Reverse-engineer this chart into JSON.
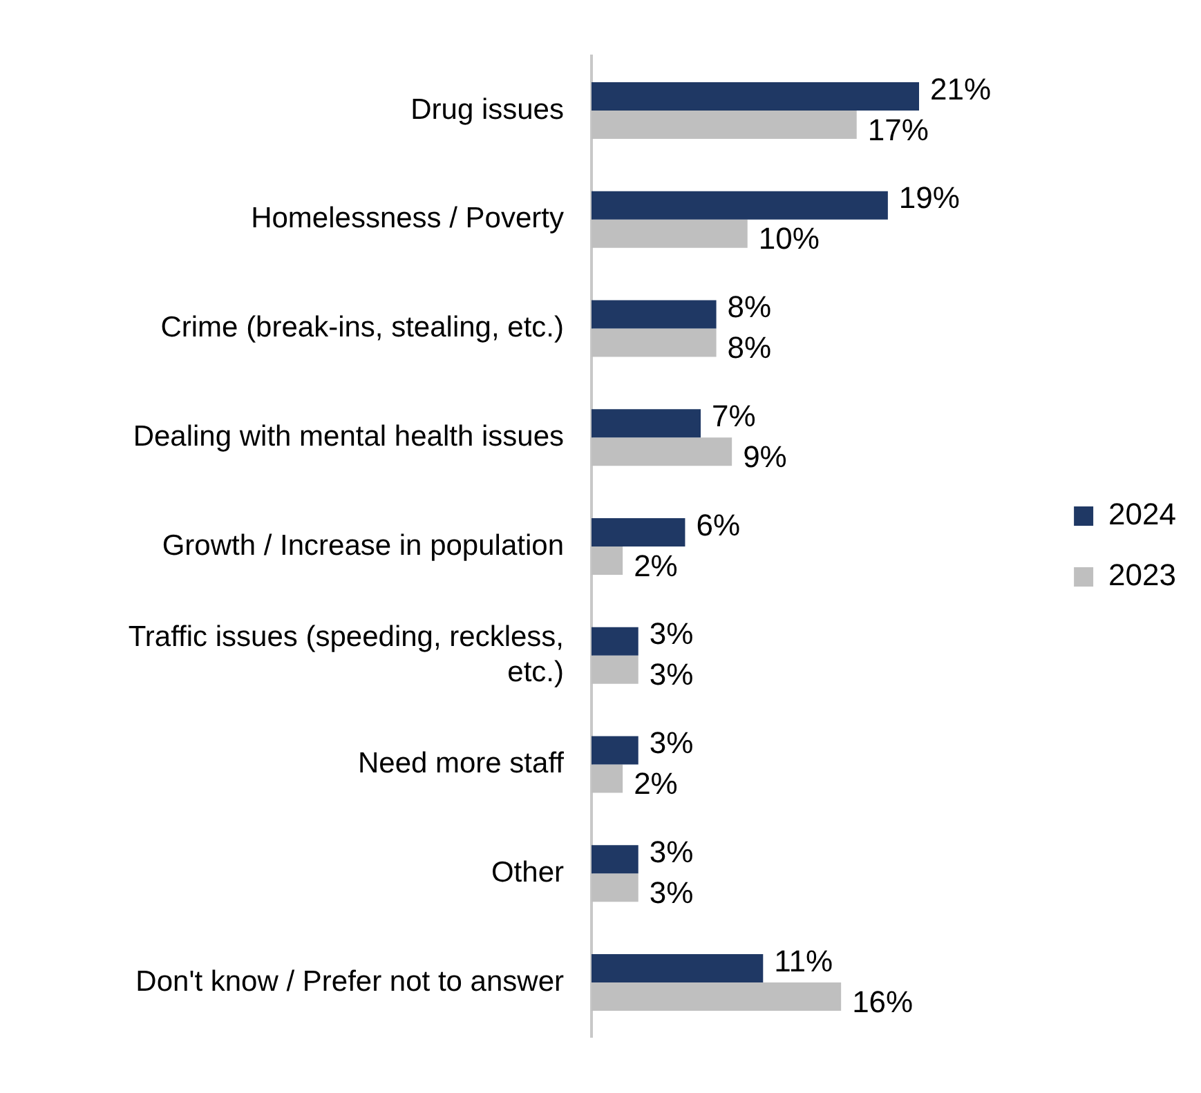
{
  "chart_data": {
    "type": "bar",
    "orientation": "horizontal",
    "legend": "right",
    "categories": [
      "Drug issues",
      "Homelessness / Poverty",
      "Crime (break-ins, stealing, etc.)",
      "Dealing with mental health issues",
      "Growth / Increase in population",
      "Traffic issues (speeding, reckless, etc.)",
      "Need more staff",
      "Other",
      "Don't know / Prefer not to answer"
    ],
    "series": [
      {
        "name": "2024",
        "color": "#1f3864",
        "values": [
          21,
          19,
          8,
          7,
          6,
          3,
          3,
          3,
          11
        ],
        "value_labels": [
          "21%",
          "19%",
          "8%",
          "7%",
          "6%",
          "3%",
          "3%",
          "3%",
          "11%"
        ]
      },
      {
        "name": "2023",
        "color": "#bfbfbf",
        "values": [
          17,
          10,
          8,
          9,
          2,
          3,
          2,
          3,
          16
        ],
        "value_labels": [
          "17%",
          "10%",
          "8%",
          "9%",
          "2%",
          "3%",
          "2%",
          "3%",
          "16%"
        ]
      }
    ]
  }
}
